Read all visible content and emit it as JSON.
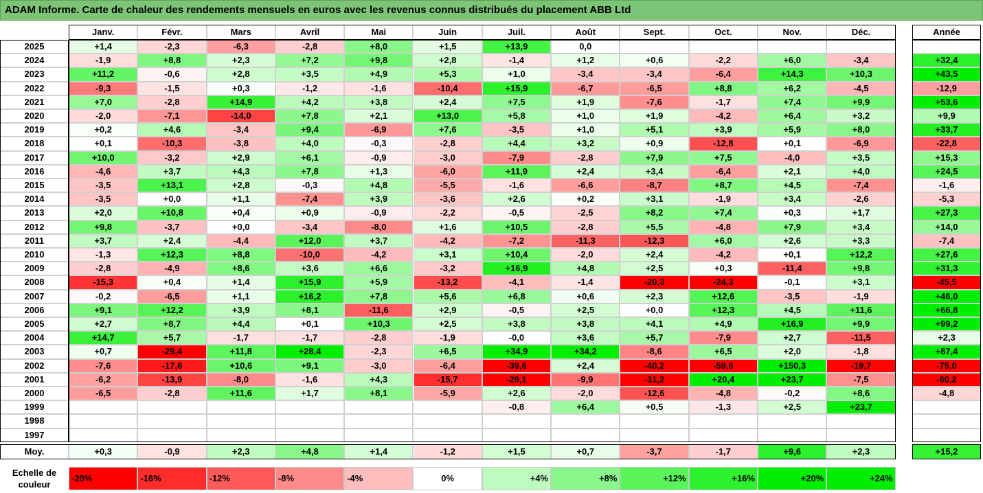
{
  "title": "ADAM Informe. Carte de chaleur des rendements mensuels en euros avec les revenus connus distribués du placement ABB Ltd",
  "chart_data": {
    "type": "heatmap",
    "title": "ADAM Informe. Carte de chaleur des rendements mensuels en euros avec les revenus connus distribués du placement ABB Ltd",
    "columns": [
      "Janv.",
      "Févr.",
      "Mars",
      "Avril",
      "Mai",
      "Juin",
      "Juil.",
      "Août",
      "Sept.",
      "Oct.",
      "Nov.",
      "Déc."
    ],
    "year_column": "Année",
    "rows": [
      {
        "year": "2025",
        "values": [
          "+1,4",
          "-2,3",
          "-6,3",
          "-2,8",
          "+8,0",
          "+1,5",
          "+13,9",
          "0,0",
          "",
          "",
          "",
          ""
        ],
        "annual": ""
      },
      {
        "year": "2024",
        "values": [
          "-1,9",
          "+8,8",
          "+2,3",
          "+7,2",
          "+9,8",
          "+2,8",
          "-1,4",
          "+1,2",
          "+0,6",
          "-2,2",
          "+6,0",
          "-3,4"
        ],
        "annual": "+32,4"
      },
      {
        "year": "2023",
        "values": [
          "+11,2",
          "-0,6",
          "+2,8",
          "+3,5",
          "+4,9",
          "+5,3",
          "+1,0",
          "-3,4",
          "-3,4",
          "-6,4",
          "+14,3",
          "+10,3"
        ],
        "annual": "+43,5"
      },
      {
        "year": "2022",
        "values": [
          "-9,3",
          "-1,5",
          "+0,3",
          "-1,2",
          "-1,6",
          "-10,4",
          "+15,9",
          "-6,7",
          "-6,5",
          "+8,8",
          "+6,2",
          "-4,5"
        ],
        "annual": "-12,9"
      },
      {
        "year": "2021",
        "values": [
          "+7,0",
          "-2,8",
          "+14,9",
          "+4,2",
          "+3,8",
          "+2,4",
          "+7,5",
          "+1,9",
          "-7,6",
          "-1,7",
          "+7,4",
          "+9,9"
        ],
        "annual": "+53,6"
      },
      {
        "year": "2020",
        "values": [
          "-2,0",
          "-7,1",
          "-14,0",
          "+7,8",
          "+2,1",
          "+13,0",
          "+5,8",
          "+1,0",
          "+1,9",
          "-4,2",
          "+6,4",
          "+3,2"
        ],
        "annual": "+9,9"
      },
      {
        "year": "2019",
        "values": [
          "+0,2",
          "+4,6",
          "-3,4",
          "+9,4",
          "-6,9",
          "+7,6",
          "-3,5",
          "+1,0",
          "+5,1",
          "+3,9",
          "+5,9",
          "+8,0"
        ],
        "annual": "+33,7"
      },
      {
        "year": "2018",
        "values": [
          "+0,1",
          "-10,3",
          "-3,8",
          "+4,0",
          "-0,3",
          "-2,8",
          "+4,4",
          "+3,2",
          "+0,9",
          "-12,8",
          "+0,1",
          "-6,9"
        ],
        "annual": "-22,8"
      },
      {
        "year": "2017",
        "values": [
          "+10,0",
          "-3,2",
          "+2,9",
          "+6,1",
          "-0,9",
          "-3,0",
          "-7,9",
          "-2,8",
          "+7,9",
          "+7,5",
          "-4,0",
          "+3,5"
        ],
        "annual": "+15,3"
      },
      {
        "year": "2016",
        "values": [
          "-4,6",
          "+3,7",
          "+4,3",
          "+7,8",
          "+1,3",
          "-6,0",
          "+11,9",
          "+2,4",
          "+3,4",
          "-6,4",
          "+2,1",
          "+4,0"
        ],
        "annual": "+24,5"
      },
      {
        "year": "2015",
        "values": [
          "-3,5",
          "+13,1",
          "+2,8",
          "-0,3",
          "+4,8",
          "-5,5",
          "-1,6",
          "-6,6",
          "-8,7",
          "+8,7",
          "+4,5",
          "-7,4"
        ],
        "annual": "-1,6"
      },
      {
        "year": "2014",
        "values": [
          "-3,5",
          "+0,0",
          "+1,1",
          "-7,4",
          "+3,9",
          "-3,6",
          "+2,6",
          "+0,2",
          "+3,1",
          "-1,9",
          "+3,4",
          "-2,6"
        ],
        "annual": "-5,3"
      },
      {
        "year": "2013",
        "values": [
          "+2,0",
          "+10,8",
          "+0,4",
          "+0,9",
          "-0,9",
          "-2,2",
          "-0,5",
          "-2,5",
          "+8,2",
          "+7,4",
          "+0,3",
          "+1,7"
        ],
        "annual": "+27,3"
      },
      {
        "year": "2012",
        "values": [
          "+9,8",
          "-3,7",
          "+0,0",
          "-3,4",
          "-8,0",
          "+1,6",
          "+10,5",
          "-2,8",
          "+5,5",
          "-4,8",
          "+7,9",
          "+3,4"
        ],
        "annual": "+14,0"
      },
      {
        "year": "2011",
        "values": [
          "+3,7",
          "+2,4",
          "-4,4",
          "+12,0",
          "+3,7",
          "-4,2",
          "-7,2",
          "-11,3",
          "-12,3",
          "+6,0",
          "+2,6",
          "+3,3"
        ],
        "annual": "-7,4"
      },
      {
        "year": "2010",
        "values": [
          "-1,3",
          "+12,3",
          "+8,8",
          "-10,0",
          "-4,2",
          "+3,1",
          "+10,4",
          "-2,0",
          "+2,4",
          "-4,2",
          "+0,1",
          "+12,2"
        ],
        "annual": "+27,6"
      },
      {
        "year": "2009",
        "values": [
          "-2,8",
          "-4,9",
          "+8,6",
          "+3,6",
          "+6,6",
          "-3,2",
          "+16,9",
          "+4,8",
          "+2,5",
          "+0,3",
          "-11,4",
          "+9,8"
        ],
        "annual": "+31,3"
      },
      {
        "year": "2008",
        "values": [
          "-15,3",
          "+0,4",
          "+1,4",
          "+15,9",
          "+5,9",
          "-13,2",
          "-4,1",
          "-1,4",
          "-20,3",
          "-24,3",
          "-0,1",
          "+3,1"
        ],
        "annual": "-45,5"
      },
      {
        "year": "2007",
        "values": [
          "-0,2",
          "-6,5",
          "+1,1",
          "+16,2",
          "+7,8",
          "+5,6",
          "+6,8",
          "+0,6",
          "+2,3",
          "+12,6",
          "-3,5",
          "-1,9"
        ],
        "annual": "+46,0"
      },
      {
        "year": "2006",
        "values": [
          "+9,1",
          "+12,2",
          "+3,9",
          "+8,1",
          "-11,6",
          "+2,9",
          "-0,5",
          "+2,5",
          "+0,0",
          "+12,3",
          "+4,5",
          "+11,6"
        ],
        "annual": "+66,8"
      },
      {
        "year": "2005",
        "values": [
          "+2,7",
          "+8,7",
          "+4,4",
          "+0,1",
          "+10,3",
          "+2,5",
          "+3,8",
          "+3,8",
          "+4,1",
          "+4,9",
          "+16,9",
          "+9,9"
        ],
        "annual": "+99,2"
      },
      {
        "year": "2004",
        "values": [
          "+14,7",
          "+5,7",
          "-1,7",
          "-1,7",
          "-2,8",
          "-1,9",
          "-0,0",
          "+3,6",
          "+5,7",
          "-7,9",
          "+2,7",
          "-11,5"
        ],
        "annual": "+2,3"
      },
      {
        "year": "2003",
        "values": [
          "+0,7",
          "-29,4",
          "+11,8",
          "+28,4",
          "-2,3",
          "+6,5",
          "+34,9",
          "+34,2",
          "-8,6",
          "+6,5",
          "+2,0",
          "-1,8"
        ],
        "annual": "+87,4"
      },
      {
        "year": "2002",
        "values": [
          "-7,6",
          "-17,6",
          "+10,6",
          "+9,1",
          "-3,0",
          "-6,4",
          "-39,6",
          "+2,4",
          "-40,2",
          "-59,6",
          "+150,3",
          "-19,7"
        ],
        "annual": "-75,0"
      },
      {
        "year": "2001",
        "values": [
          "-6,2",
          "-13,9",
          "-8,0",
          "-1,6",
          "+4,3",
          "-15,7",
          "-29,1",
          "-9,9",
          "-31,2",
          "+20,4",
          "+23,7",
          "-7,5"
        ],
        "annual": "-60,2"
      },
      {
        "year": "2000",
        "values": [
          "-6,5",
          "-2,8",
          "+11,6",
          "+1,7",
          "+8,1",
          "-5,9",
          "+2,6",
          "-2,0",
          "-12,6",
          "-4,8",
          "-0,2",
          "+8,6"
        ],
        "annual": "-4,8"
      },
      {
        "year": "1999",
        "values": [
          "",
          "",
          "",
          "",
          "",
          "",
          "-0,8",
          "+6,4",
          "+0,5",
          "-1,3",
          "+2,5",
          "+23,7"
        ],
        "annual": ""
      },
      {
        "year": "1998",
        "values": [
          "",
          "",
          "",
          "",
          "",
          "",
          "",
          "",
          "",
          "",
          "",
          ""
        ],
        "annual": ""
      },
      {
        "year": "1997",
        "values": [
          "",
          "",
          "",
          "",
          "",
          "",
          "",
          "",
          "",
          "",
          "",
          ""
        ],
        "annual": ""
      }
    ],
    "average": {
      "label": "Moy.",
      "values": [
        "+0,3",
        "-0,9",
        "+2,3",
        "+4,8",
        "+1,4",
        "-1,2",
        "+1,5",
        "+0,7",
        "-3,7",
        "-1,7",
        "+9,6",
        "+2,3"
      ],
      "annual": "+15,2"
    },
    "scale": {
      "label": "Echelle de couleur",
      "steps": [
        "-20%",
        "-16%",
        "-12%",
        "-8%",
        "-4%",
        "0%",
        "+4%",
        "+8%",
        "+12%",
        "+16%",
        "+20%",
        "+24%"
      ],
      "step_values": [
        -20,
        -16,
        -12,
        -8,
        -4,
        0,
        4,
        8,
        12,
        16,
        20,
        24
      ]
    },
    "colors": {
      "neg_max": "#ff0000",
      "neutral": "#ffffff",
      "pos_max": "#00ee00",
      "title_bg": "#7cc576"
    }
  }
}
